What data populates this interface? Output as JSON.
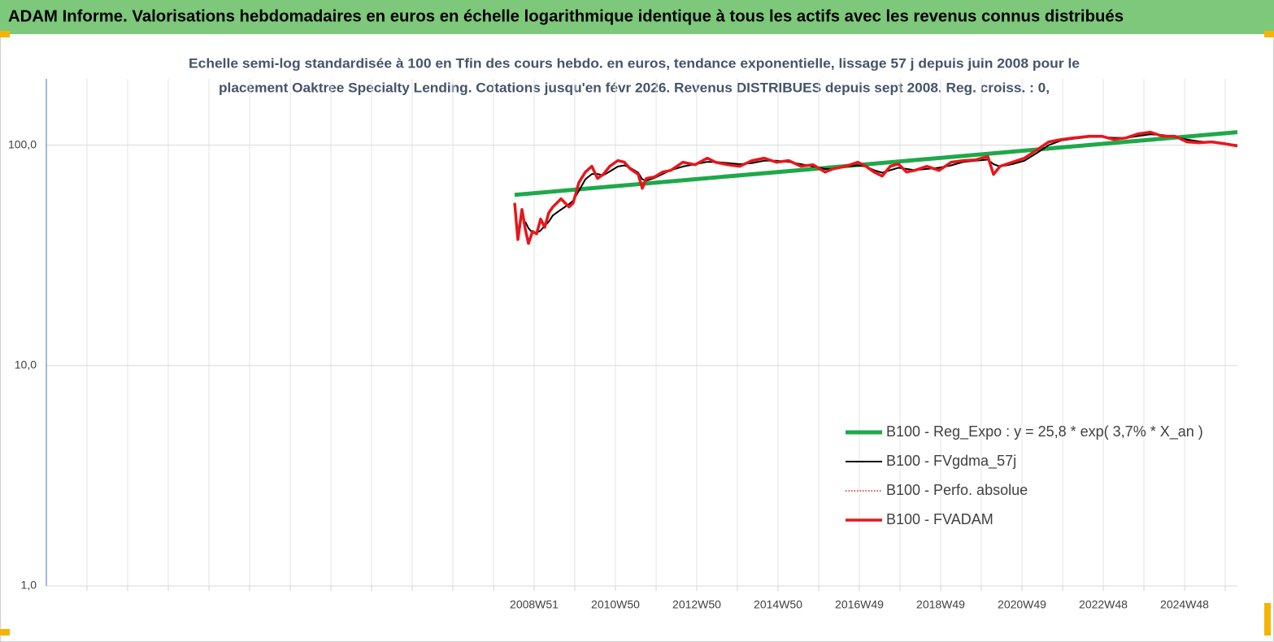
{
  "header": {
    "title": "ADAM Informe. Valorisations hebdomadaires en euros en échelle logarithmique identique à tous les actifs avec les revenus connus distribués"
  },
  "chart_data": {
    "type": "line",
    "title": [
      "Echelle semi-log standardisée à 100 en Tfin des cours hebdo. en euros, tendance exponentielle, lissage 57 j depuis juin 2008 pour le",
      "placement Oaktree Specialty Lending. Cotations jusqu'en févr 2026. Revenus DISTRIBUES depuis sept 2008. Reg. croiss. : 0,"
    ],
    "log_y": true,
    "grid": true,
    "legend": "lower right",
    "xlim": [
      1996.96,
      2026.26
    ],
    "xticks": [
      {
        "value": 1997.96,
        "label": null
      },
      {
        "value": 1998.96,
        "label": null
      },
      {
        "value": 1999.96,
        "label": null
      },
      {
        "value": 2000.96,
        "label": null
      },
      {
        "value": 2001.96,
        "label": null
      },
      {
        "value": 2002.96,
        "label": null
      },
      {
        "value": 2003.96,
        "label": null
      },
      {
        "value": 2004.96,
        "label": null
      },
      {
        "value": 2005.96,
        "label": null
      },
      {
        "value": 2006.96,
        "label": null
      },
      {
        "value": 2007.96,
        "label": null
      },
      {
        "value": 2008.96,
        "label": "2008W51"
      },
      {
        "value": 2009.96,
        "label": null
      },
      {
        "value": 2010.96,
        "label": "2010W50"
      },
      {
        "value": 2011.96,
        "label": null
      },
      {
        "value": 2012.96,
        "label": "2012W50"
      },
      {
        "value": 2013.96,
        "label": null
      },
      {
        "value": 2014.96,
        "label": "2014W50"
      },
      {
        "value": 2015.96,
        "label": null
      },
      {
        "value": 2016.96,
        "label": "2016W49"
      },
      {
        "value": 2017.96,
        "label": null
      },
      {
        "value": 2018.96,
        "label": "2018W49"
      },
      {
        "value": 2019.96,
        "label": null
      },
      {
        "value": 2020.96,
        "label": "2020W49"
      },
      {
        "value": 2021.96,
        "label": null
      },
      {
        "value": 2022.96,
        "label": "2022W48"
      },
      {
        "value": 2023.96,
        "label": null
      },
      {
        "value": 2024.96,
        "label": "2024W48"
      },
      {
        "value": 2025.96,
        "label": null
      }
    ],
    "ylim": [
      1,
      200
    ],
    "yticks": [
      {
        "value": 1,
        "label": "1,0"
      },
      {
        "value": 10,
        "label": "10,0"
      },
      {
        "value": 100,
        "label": "100,0"
      }
    ],
    "x": [
      2008.48,
      2008.56,
      2008.66,
      2008.74,
      2008.82,
      2008.92,
      2009.02,
      2009.12,
      2009.22,
      2009.32,
      2009.42,
      2009.62,
      2009.82,
      2009.92,
      2010.06,
      2010.22,
      2010.38,
      2010.52,
      2010.66,
      2010.82,
      2011.02,
      2011.18,
      2011.32,
      2011.52,
      2011.62,
      2011.72,
      2011.92,
      2012.12,
      2012.32,
      2012.62,
      2012.92,
      2013.22,
      2013.42,
      2013.72,
      2014.02,
      2014.32,
      2014.62,
      2014.92,
      2015.22,
      2015.52,
      2015.82,
      2016.12,
      2016.32,
      2016.62,
      2016.92,
      2017.12,
      2017.32,
      2017.52,
      2017.72,
      2017.92,
      2018.12,
      2018.32,
      2018.62,
      2018.92,
      2019.22,
      2019.52,
      2019.82,
      2020.12,
      2020.26,
      2020.42,
      2020.72,
      2021.02,
      2021.32,
      2021.62,
      2021.92,
      2022.22,
      2022.62,
      2022.92,
      2023.22,
      2023.52,
      2023.82,
      2024.12,
      2024.42,
      2024.72,
      2025.02,
      2025.32,
      2025.62,
      2025.92,
      2026.26
    ],
    "series": [
      {
        "name": "B100 - Reg_Expo : y = 25,8 *  exp( 3,7% *  X_an )",
        "color": "#1fa84a",
        "width": 5,
        "x": [
          2008.48,
          2026.26
        ],
        "values": [
          59.5,
          114.6
        ]
      },
      {
        "name": "B100 - FVgdma_57j",
        "color": "#000000",
        "width": 2,
        "values": [
          null,
          null,
          null,
          45,
          42,
          40,
          40,
          41,
          43,
          45,
          48,
          51,
          54,
          56,
          62,
          70,
          74,
          74,
          73,
          76,
          80,
          81,
          79,
          75,
          70,
          69,
          71,
          74,
          77,
          80,
          82,
          84,
          84,
          83,
          82,
          83,
          85,
          85,
          84,
          82,
          80,
          78,
          78,
          80,
          81,
          80,
          77,
          75,
          77,
          79,
          78,
          77,
          78,
          79,
          81,
          84,
          85,
          86,
          82,
          80,
          82,
          85,
          92,
          100,
          105,
          107,
          109,
          109,
          108,
          108,
          110,
          112,
          111,
          109,
          106,
          104,
          103,
          102,
          100
        ]
      },
      {
        "name": "B100 - Perfo. absolue",
        "color": "#e31a1c",
        "width": 1.5,
        "dash": "dotted",
        "values": [
          54.7,
          37.3,
          51.1,
          41.7,
          35.8,
          40.6,
          39.6,
          46.2,
          42.4,
          49.4,
          52.4,
          57.1,
          52.4,
          54.7,
          67.6,
          75.5,
          80.2,
          70.6,
          73.7,
          80.2,
          85.1,
          83.7,
          78.2,
          73.7,
          63.7,
          70.6,
          71.8,
          75.5,
          76.8,
          83.7,
          81.5,
          87.3,
          83.7,
          81.5,
          80.2,
          85.1,
          87.3,
          83.7,
          85.1,
          80.2,
          81.5,
          75.5,
          78.2,
          80.2,
          83.7,
          80.2,
          75.5,
          72.4,
          80.2,
          82.2,
          75.5,
          76.8,
          80.2,
          76.8,
          83.7,
          85.1,
          85.8,
          88.8,
          73.7,
          80.2,
          83.7,
          87.3,
          95.0,
          103.5,
          106.1,
          107.9,
          109.8,
          109.8,
          106.1,
          107.9,
          112.6,
          114.6,
          109.8,
          109.8,
          103.5,
          102.6,
          103.5,
          101.7,
          99.2
        ]
      },
      {
        "name": "B100 - FVADAM",
        "color": "#e8161b",
        "width": 3.5,
        "values": [
          54.7,
          37.3,
          51.1,
          41.7,
          35.8,
          40.6,
          39.6,
          46.2,
          42.4,
          49.4,
          52.4,
          57.1,
          52.4,
          54.7,
          67.6,
          75.5,
          80.2,
          70.6,
          73.7,
          80.2,
          85.1,
          83.7,
          78.2,
          73.7,
          63.7,
          70.6,
          71.8,
          75.5,
          76.8,
          83.7,
          81.5,
          87.3,
          83.7,
          81.5,
          80.2,
          85.1,
          87.3,
          83.7,
          85.1,
          80.2,
          81.5,
          75.5,
          78.2,
          80.2,
          83.7,
          80.2,
          75.5,
          72.4,
          80.2,
          82.2,
          75.5,
          76.8,
          80.2,
          76.8,
          83.7,
          85.1,
          85.8,
          88.8,
          73.7,
          80.2,
          83.7,
          87.3,
          95.0,
          103.5,
          106.1,
          107.9,
          109.8,
          109.8,
          106.1,
          107.9,
          112.6,
          114.6,
          109.8,
          109.8,
          103.5,
          102.6,
          103.5,
          101.7,
          99.2
        ]
      }
    ]
  }
}
